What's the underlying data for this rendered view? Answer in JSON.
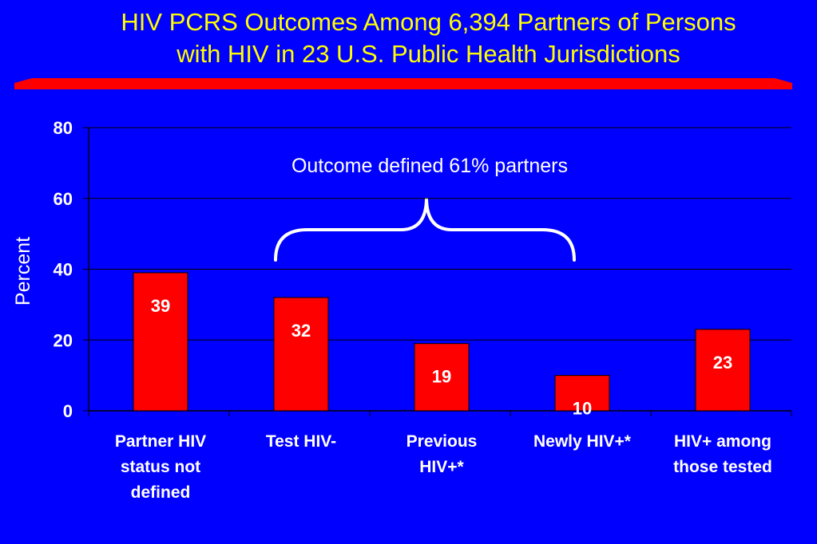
{
  "slide": {
    "title_line1": "HIV PCRS Outcomes Among 6,394 Partners of Persons",
    "title_line2": "with HIV in 23 U.S. Public Health Jurisdictions",
    "title_color": "#ffff00",
    "background_color": "#0000ff",
    "rule_color": "#ff0000"
  },
  "chart_data": {
    "type": "bar",
    "categories": [
      [
        "Partner HIV",
        "status not",
        "defined"
      ],
      [
        "Test HIV-"
      ],
      [
        "Previous",
        "HIV+*"
      ],
      [
        "Newly HIV+*"
      ],
      [
        "HIV+ among",
        "those tested"
      ]
    ],
    "values": [
      39,
      32,
      19,
      10,
      23
    ],
    "data_labels": [
      "39",
      "32",
      "19",
      "10",
      "23"
    ],
    "ylabel": "Percent",
    "ylim": [
      0,
      80
    ],
    "yticks": [
      0,
      20,
      40,
      60,
      80
    ],
    "grid": true,
    "bar_color": "#ff0000",
    "annotation": "Outcome defined 61% partners",
    "brace_spans_categories": [
      1,
      3
    ]
  }
}
